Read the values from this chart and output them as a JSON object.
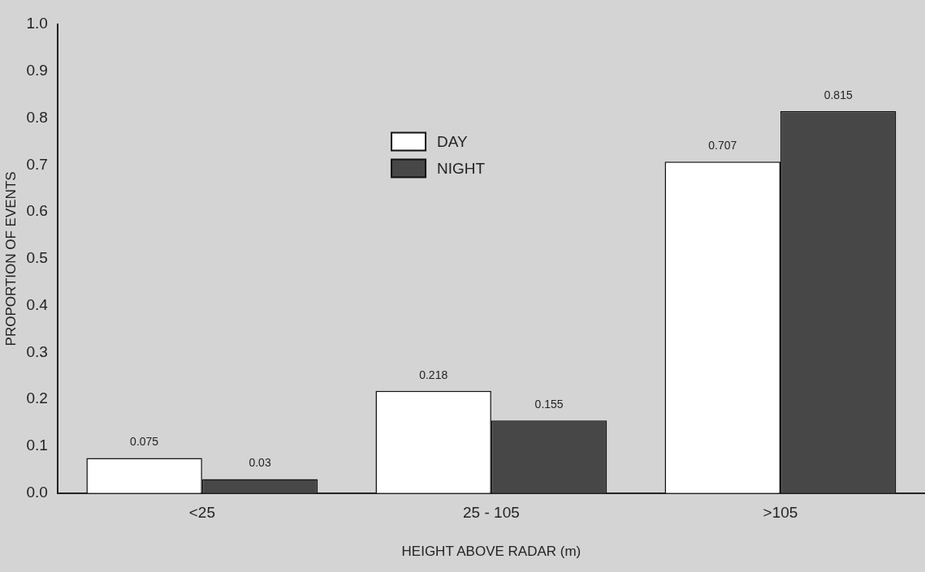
{
  "chart_data": {
    "type": "bar",
    "xlabel": "HEIGHT ABOVE RADAR (m)",
    "ylabel": "PROPORTION OF EVENTS",
    "categories": [
      "<25",
      "25 - 105",
      ">105"
    ],
    "series": [
      {
        "name": "DAY",
        "color": "#ffffff",
        "values": [
          0.075,
          0.218,
          0.707
        ]
      },
      {
        "name": "NIGHT",
        "color": "#474747",
        "values": [
          0.03,
          0.155,
          0.815
        ]
      }
    ],
    "ylim": [
      0,
      1
    ],
    "yticks": [
      {
        "value": 0,
        "label": "0.0"
      },
      {
        "value": 0.1,
        "label": "0.1"
      },
      {
        "value": 0.2,
        "label": "0.2"
      },
      {
        "value": 0.3,
        "label": "0.3"
      },
      {
        "value": 0.4,
        "label": "0.4"
      },
      {
        "value": 0.5,
        "label": "0.5"
      },
      {
        "value": 0.6,
        "label": "0.6"
      },
      {
        "value": 0.7,
        "label": "0.7"
      },
      {
        "value": 0.8,
        "label": "0.8"
      },
      {
        "value": 0.9,
        "label": "0.9"
      },
      {
        "value": 1,
        "label": "1.0"
      }
    ],
    "grid": false,
    "legend": "top",
    "data_labels": true
  }
}
